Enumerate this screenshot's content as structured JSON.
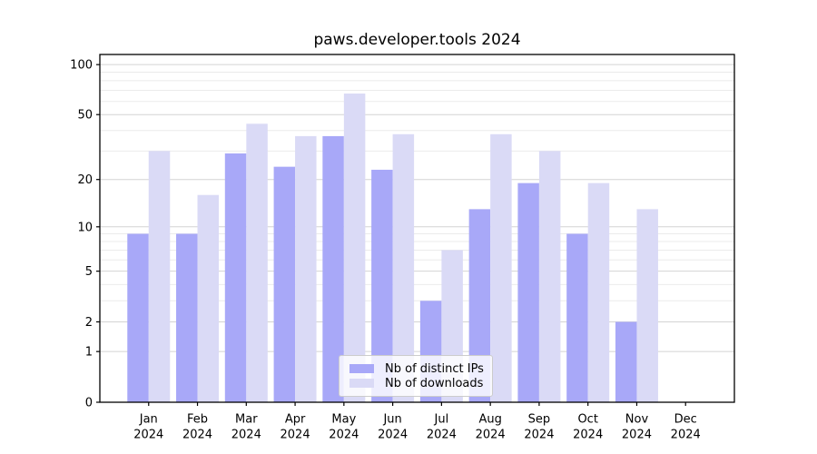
{
  "chart_data": {
    "type": "bar",
    "title": "paws.developer.tools 2024",
    "categories": [
      "Jan 2024",
      "Feb 2024",
      "Mar 2024",
      "Apr 2024",
      "May 2024",
      "Jun 2024",
      "Jul 2024",
      "Aug 2024",
      "Sep 2024",
      "Oct 2024",
      "Nov 2024",
      "Dec 2024"
    ],
    "x_tick_month": [
      "Jan",
      "Feb",
      "Mar",
      "Apr",
      "May",
      "Jun",
      "Jul",
      "Aug",
      "Sep",
      "Oct",
      "Nov",
      "Dec"
    ],
    "x_tick_year": "2024",
    "series": [
      {
        "name": "Nb of distinct IPs",
        "color": "#a8a8f8",
        "values": [
          9,
          9,
          29,
          24,
          37,
          23,
          3,
          13,
          19,
          9,
          2,
          0
        ]
      },
      {
        "name": "Nb of downloads",
        "color": "#dadaf6",
        "values": [
          30,
          16,
          44,
          37,
          67,
          38,
          7,
          38,
          30,
          19,
          13,
          0
        ]
      }
    ],
    "xlabel": "",
    "ylabel": "",
    "yscale": "log1p",
    "ylim": [
      0,
      115
    ],
    "y_major_ticks": [
      0,
      1,
      2,
      5,
      10,
      20,
      50,
      100
    ],
    "y_minor_gridlines": [
      3,
      4,
      6,
      7,
      8,
      9,
      30,
      40,
      60,
      70,
      80,
      90
    ],
    "grid": true,
    "legend_position": "lower center"
  },
  "colors": {
    "major_grid": "#d4d4d4",
    "minor_grid": "#ebebeb",
    "spine": "#000000",
    "background": "#ffffff"
  }
}
